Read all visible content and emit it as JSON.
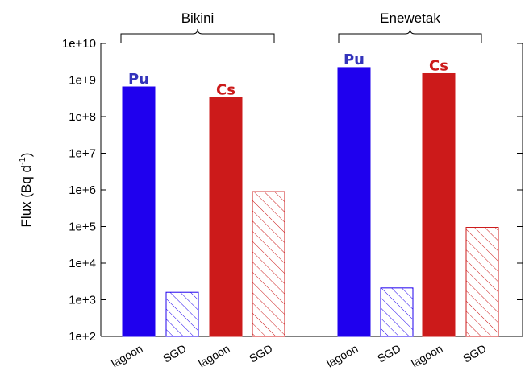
{
  "chart_data": {
    "type": "bar",
    "ylabel": "Flux (Bq d",
    "ylabel_sup": "-1",
    "ylabel_close": ")",
    "yscale": "log",
    "ylim": [
      100,
      10000000000
    ],
    "ytick_labels": [
      "1e+2",
      "1e+3",
      "1e+4",
      "1e+5",
      "1e+6",
      "1e+7",
      "1e+8",
      "1e+9",
      "1e+10"
    ],
    "groups": [
      {
        "name": "Bikini",
        "bars": [
          {
            "label": "lagoon",
            "series": "Pu",
            "value": 650000000,
            "style": "solid"
          },
          {
            "label": "SGD",
            "series": "Pu",
            "value": 1600,
            "style": "hatched"
          },
          {
            "label": "lagoon",
            "series": "Cs",
            "value": 330000000,
            "style": "solid"
          },
          {
            "label": "SGD",
            "series": "Cs",
            "value": 900000,
            "style": "hatched"
          }
        ]
      },
      {
        "name": "Enewetak",
        "bars": [
          {
            "label": "lagoon",
            "series": "Pu",
            "value": 2200000000,
            "style": "solid"
          },
          {
            "label": "SGD",
            "series": "Pu",
            "value": 2100,
            "style": "hatched"
          },
          {
            "label": "lagoon",
            "series": "Cs",
            "value": 1500000000,
            "style": "solid"
          },
          {
            "label": "SGD",
            "series": "Cs",
            "value": 95000,
            "style": "hatched"
          }
        ]
      }
    ],
    "series_tags": [
      "Pu",
      "Cs",
      "Pu",
      "Cs"
    ],
    "colors": {
      "Pu": "#1f00ee",
      "Cs": "#cc1a1a",
      "Pu_text": "#3333bb",
      "Cs_text": "#cc1a1a"
    }
  }
}
